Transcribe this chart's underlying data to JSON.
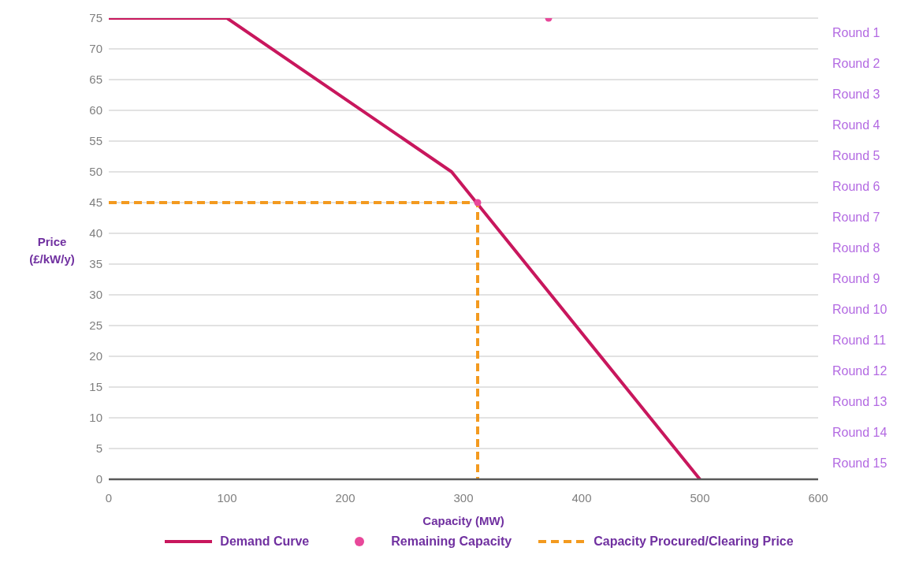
{
  "chart_data": {
    "type": "line",
    "xlabel": "Capacity (MW)",
    "ylabel": "Price (£/kW/y)",
    "xlim": [
      0,
      600
    ],
    "xticks": [
      0,
      100,
      200,
      300,
      400,
      500,
      600
    ],
    "ylim": [
      0,
      75
    ],
    "yticks": [
      0,
      5,
      10,
      15,
      20,
      25,
      30,
      35,
      40,
      45,
      50,
      55,
      60,
      65,
      70,
      75
    ],
    "annotations": [
      "Round 1",
      "Round 2",
      "Round 3",
      "Round 4",
      "Round 5",
      "Round 6",
      "Round 7",
      "Round 8",
      "Round 9",
      "Round 10",
      "Round 11",
      "Round 12",
      "Round 13",
      "Round 14",
      "Round 15"
    ],
    "grid": "y",
    "legend": "bottom",
    "series": [
      {
        "name": "Demand Curve",
        "color": "#c8175d",
        "marker": "none",
        "line_style": "solid",
        "x": [
          0,
          100,
          290,
          500
        ],
        "values": [
          75,
          75,
          50,
          0
        ]
      },
      {
        "name": "Remaining Capacity",
        "type": "scatter",
        "color": "#e8489a",
        "marker": "circle",
        "x": [
          372,
          312
        ],
        "values": [
          75,
          45
        ]
      },
      {
        "name": "Capacity Procured/Clearing Price",
        "type": "line",
        "color": "#f39a1f",
        "marker": "none",
        "line_style": "dashed",
        "x": [
          0,
          312,
          312
        ],
        "values": [
          45,
          45,
          0
        ]
      }
    ]
  }
}
